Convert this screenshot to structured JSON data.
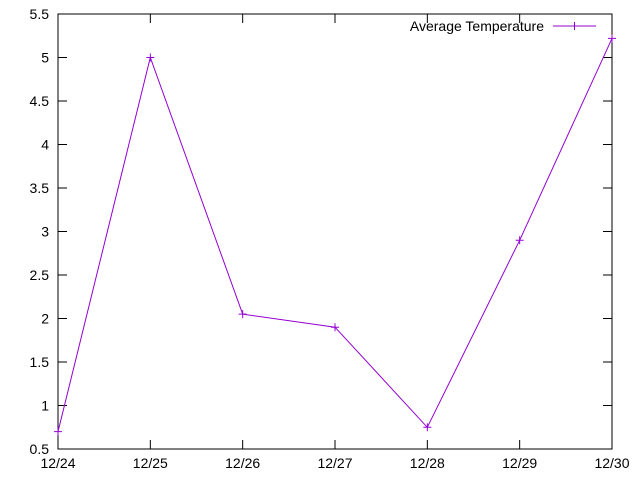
{
  "chart_data": {
    "type": "line",
    "title": "",
    "xlabel": "",
    "ylabel": "",
    "categories": [
      "12/24",
      "12/25",
      "12/26",
      "12/27",
      "12/28",
      "12/29",
      "12/30"
    ],
    "series": [
      {
        "name": "Average Temperature",
        "values": [
          0.7,
          5.0,
          2.05,
          1.9,
          0.75,
          2.9,
          5.22
        ],
        "color": "#9400d3",
        "marker": "plus"
      }
    ],
    "ylim": [
      0.5,
      5.5
    ],
    "yticks": [
      "0.5",
      "1",
      "1.5",
      "2",
      "2.5",
      "3",
      "3.5",
      "4",
      "4.5",
      "5",
      "5.5"
    ],
    "ytick_values": [
      0.5,
      1,
      1.5,
      2,
      2.5,
      3,
      3.5,
      4,
      4.5,
      5,
      5.5
    ],
    "grid": false,
    "legend_position": "top-right"
  }
}
